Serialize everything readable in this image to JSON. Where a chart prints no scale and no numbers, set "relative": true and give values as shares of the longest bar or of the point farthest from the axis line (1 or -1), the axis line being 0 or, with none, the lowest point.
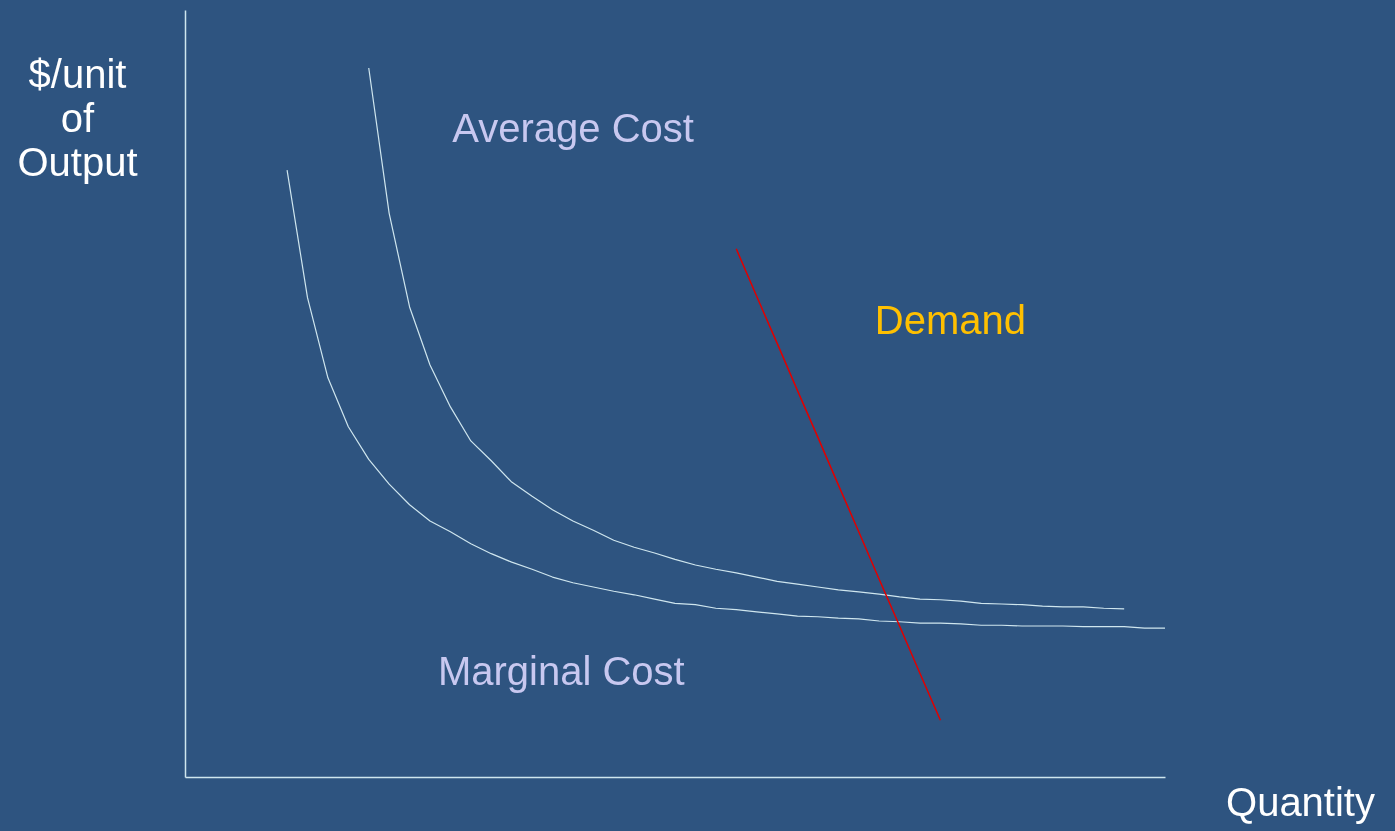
{
  "chart_data": {
    "type": "line",
    "relative": true,
    "xlabel": "Quantity",
    "ylabel": "$/unit of Output",
    "marker": "none",
    "line_style": "solid",
    "categories": [
      null,
      null,
      null,
      null,
      null,
      null,
      null,
      null,
      null,
      null,
      null,
      null,
      null,
      null,
      null,
      null,
      null,
      null,
      null,
      null,
      null,
      null,
      null,
      null,
      null,
      null,
      null,
      null,
      null,
      null,
      null,
      null,
      null,
      null,
      null,
      null,
      null,
      null,
      null,
      null,
      null,
      null,
      null,
      null,
      null,
      null,
      null,
      null,
      null
    ],
    "series": [
      {
        "name": "Average Cost",
        "color": "#cfe6ee",
        "values": [
          null,
          null,
          null,
          null,
          null,
          null,
          null,
          null,
          null,
          1.0,
          0.795,
          0.663,
          0.581,
          0.522,
          0.474,
          0.446,
          0.416,
          0.396,
          0.377,
          0.361,
          0.348,
          0.334,
          0.324,
          0.316,
          0.307,
          0.299,
          0.293,
          0.288,
          0.282,
          0.276,
          0.272,
          0.268,
          0.264,
          0.261,
          0.258,
          0.254,
          0.251,
          0.25,
          0.248,
          0.245,
          0.244,
          0.243,
          0.241,
          0.24,
          0.24,
          0.238,
          0.237,
          null,
          null
        ]
      },
      {
        "name": "Marginal Cost",
        "color": "#cfe6ee",
        "values": [
          null,
          null,
          null,
          null,
          null,
          0.856,
          0.676,
          0.563,
          0.494,
          0.448,
          0.413,
          0.384,
          0.361,
          0.346,
          0.329,
          0.315,
          0.303,
          0.293,
          0.282,
          0.274,
          0.268,
          0.262,
          0.257,
          0.251,
          0.245,
          0.243,
          0.238,
          0.236,
          0.233,
          0.23,
          0.227,
          0.226,
          0.224,
          0.223,
          0.22,
          0.219,
          0.217,
          0.217,
          0.216,
          0.214,
          0.214,
          0.213,
          0.213,
          0.213,
          0.212,
          0.212,
          0.212,
          0.21,
          0.21
        ]
      },
      {
        "name": "Demand",
        "color": "#e00000",
        "values": [
          null,
          null,
          null,
          null,
          null,
          null,
          null,
          null,
          null,
          null,
          null,
          null,
          null,
          null,
          null,
          null,
          null,
          null,
          null,
          null,
          null,
          null,
          null,
          null,
          null,
          null,
          null,
          0.745,
          0.678,
          0.612,
          0.545,
          0.479,
          0.412,
          0.346,
          0.279,
          0.213,
          0.146,
          0.08,
          null,
          null,
          null,
          null,
          null,
          null,
          null,
          null,
          null,
          null,
          null
        ]
      }
    ]
  }
}
